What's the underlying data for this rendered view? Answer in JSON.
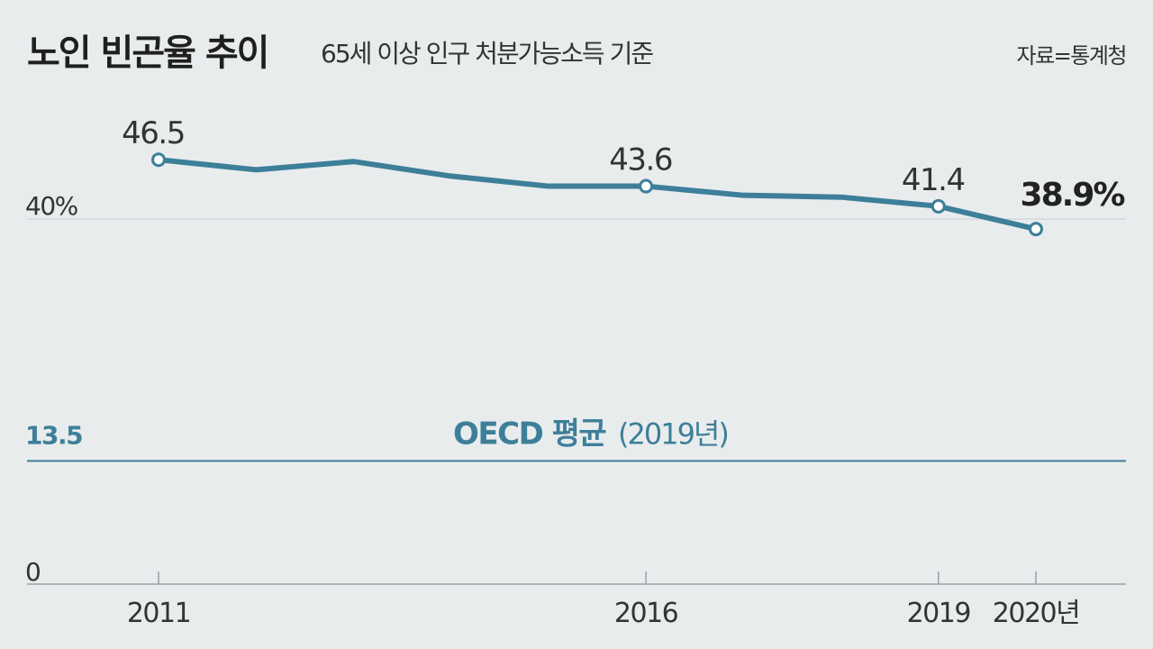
{
  "header": {
    "title": "노인 빈곤율 추이",
    "subtitle": "65세 이상 인구 처분가능소득 기준",
    "source": "자료=통계청"
  },
  "chart_data": {
    "type": "line",
    "title": "노인 빈곤율 추이",
    "subtitle": "65세 이상 인구 처분가능소득 기준",
    "source": "자료=통계청",
    "x": [
      2011,
      2012,
      2013,
      2014,
      2015,
      2016,
      2017,
      2018,
      2019,
      2020
    ],
    "series": [
      {
        "values": [
          46.5,
          45.4,
          46.3,
          44.7,
          43.6,
          43.6,
          42.6,
          42.4,
          41.4,
          38.9
        ]
      }
    ],
    "labeled_points": [
      {
        "x": 2011,
        "text": "46.5",
        "emphasis": false
      },
      {
        "x": 2016,
        "text": "43.6",
        "emphasis": false
      },
      {
        "x": 2019,
        "text": "41.4",
        "emphasis": false
      },
      {
        "x": 2020,
        "text": "38.9%",
        "emphasis": true
      }
    ],
    "x_tick_labels": [
      {
        "x": 2011,
        "text": "2011"
      },
      {
        "x": 2016,
        "text": "2016"
      },
      {
        "x": 2019,
        "text": "2019"
      },
      {
        "x": 2020,
        "text": "2020년"
      }
    ],
    "y_tick_labels": [
      {
        "y": 40,
        "text": "40%"
      },
      {
        "y": 0,
        "text": "0"
      }
    ],
    "reference_line": {
      "value": 13.5,
      "value_label": "13.5",
      "name": "OECD 평균",
      "note": "(2019년)"
    },
    "ylim": [
      0,
      49
    ],
    "grid": "single gridline at 40",
    "colors": {
      "line": "#3d7f99",
      "marker_fill": "#ffffff",
      "grid": "#c9cdcf",
      "axis": "#9a9fa2",
      "background": "#e9eced"
    }
  }
}
